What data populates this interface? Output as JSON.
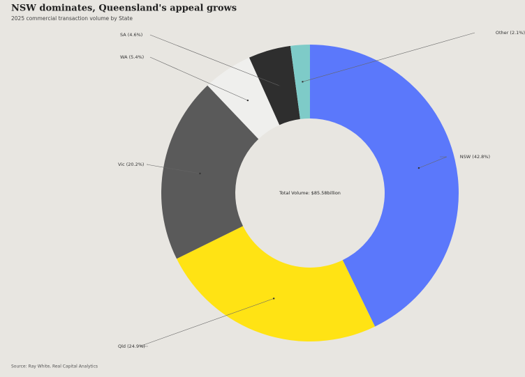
{
  "chart_data": {
    "type": "donut",
    "title": "NSW dominates, Queensland's appeal grows",
    "subtitle": "2025 commercial transaction volume by State",
    "center_label": "Total Volume: $85.58billion",
    "source": "Source: Ray White, Real Capital Analytics",
    "values": [
      42.8,
      24.9,
      20.2,
      5.4,
      4.6,
      2.1
    ],
    "value_labels": [
      "NSW (42.8%)",
      "Qld (24.9%)",
      "Vic (20.2%)",
      "WA (5.4%)",
      "SA (4.6%)",
      "Other (2.1%)"
    ],
    "colors": [
      "#5b78fb",
      "#ffe314",
      "#5a5a5a",
      "#efefed",
      "#2e2e2e",
      "#7ecbc8"
    ]
  }
}
